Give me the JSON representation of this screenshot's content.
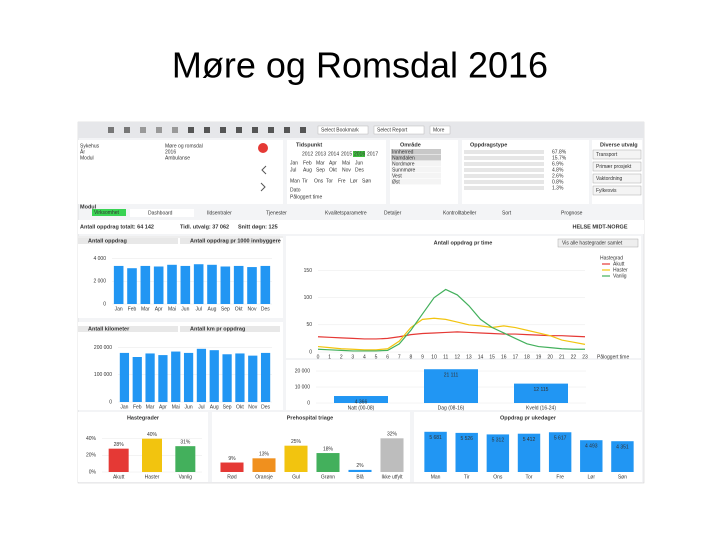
{
  "title": "Møre og Romsdal 2016",
  "toolbar": [
    "Select Bookmark",
    "Select Report",
    "More"
  ],
  "selections": {
    "fields": [
      "Sykehus",
      "År",
      "Modul"
    ],
    "values": [
      "Møre og romsdal",
      "2016",
      "Ambulanse"
    ]
  },
  "tidspunkt": {
    "title": "Tidspunkt",
    "years": [
      "2012",
      "2013",
      "2014",
      "2015",
      "2016",
      "2017"
    ],
    "selected": "2016",
    "months": [
      "Jan",
      "Feb",
      "Mar",
      "Apr",
      "Mai",
      "Jun",
      "Jul",
      "Aug",
      "Sep",
      "Okt",
      "Nov",
      "Des"
    ],
    "weekdays": [
      "Man",
      "Tir",
      "Ons",
      "Tor",
      "Fre",
      "Lør",
      "Søn"
    ],
    "date_label": "Dato",
    "hour_label": "Påloggert time"
  },
  "omrade": {
    "title": "Område",
    "items": [
      "Innherred",
      "Namdalen",
      "Nordmøre",
      "Sunnmøre",
      "Vest",
      "Øst"
    ]
  },
  "oppdragstype": {
    "title": "Oppdragstype",
    "shares": [
      "67.8%",
      "15.7%",
      "6.9%",
      "4.8%",
      "2.6%",
      "0.8%",
      "1.3%"
    ]
  },
  "diverse": {
    "title": "Diverse utvalg",
    "buttons": [
      "Transport",
      "Primær prosjekt",
      "Vaktordning",
      "Fylkesvis"
    ]
  },
  "modul": {
    "label": "Modul",
    "value": "Virksomhet"
  },
  "tabs": [
    "Dashboard",
    "Ildsentraler",
    "Tjenester",
    "Kvalitetsparametre",
    "Detaljer",
    "Kontrolltabeller",
    "Sort",
    "Prognose"
  ],
  "kpis": [
    "Antall oppdrag totalt: 64 142",
    "Tidl. utvalg: 37 062",
    "Snitt døgn: 125"
  ],
  "logo": "HELSE MIDT-NORGE",
  "panels_empty": [
    "Antall oppdrag pr 1000 innbyggere",
    "Antall km pr oppdrag"
  ],
  "chart_data": [
    {
      "type": "bar",
      "title": "Antall oppdrag",
      "color": "#2196f3",
      "categories": [
        "Jan",
        "Feb",
        "Mar",
        "Apr",
        "Mai",
        "Jun",
        "Jul",
        "Aug",
        "Sep",
        "Okt",
        "Nov",
        "Des"
      ],
      "values": [
        3350,
        3150,
        3350,
        3300,
        3450,
        3350,
        3500,
        3450,
        3300,
        3350,
        3250,
        3350
      ],
      "ylim": [
        0,
        4400
      ],
      "yticks": [
        0,
        {
          "value": 2000,
          "label": "2 000"
        },
        {
          "value": 4000,
          "label": "4 000"
        }
      ]
    },
    {
      "type": "bar",
      "title": "Antall kilometer",
      "color": "#2196f3",
      "categories": [
        "Jan",
        "Feb",
        "Mar",
        "Apr",
        "Mai",
        "Jun",
        "Jul",
        "Aug",
        "Sep",
        "Okt",
        "Nov",
        "Des"
      ],
      "values": [
        180000,
        165000,
        178000,
        172000,
        185000,
        180000,
        195000,
        190000,
        175000,
        178000,
        170000,
        180000
      ],
      "ylim": [
        0,
        220000
      ],
      "yticks": [
        0,
        {
          "value": 100000,
          "label": "100 000"
        },
        {
          "value": 200000,
          "label": "200 000"
        }
      ]
    },
    {
      "type": "line",
      "title": "Antall oppdrag pr time",
      "button": "Vis alle hastegrader samlet",
      "legend_title": "Hastegrad",
      "xlabel": "Påloggert time",
      "x": [
        0,
        1,
        2,
        3,
        4,
        5,
        6,
        7,
        8,
        9,
        10,
        11,
        12,
        13,
        14,
        15,
        16,
        17,
        18,
        19,
        20,
        21,
        22,
        23
      ],
      "xlim": [
        0,
        23
      ],
      "xticks": [
        0,
        1,
        2,
        3,
        4,
        5,
        6,
        7,
        8,
        9,
        10,
        11,
        12,
        13,
        14,
        15,
        16,
        17,
        18,
        19,
        20,
        21,
        22,
        23
      ],
      "ylim": [
        0,
        160
      ],
      "yticks": [
        0,
        50,
        100,
        150
      ],
      "series": [
        {
          "name": "Akutt",
          "color": "#e53935",
          "values": [
            28,
            27,
            26,
            25,
            24,
            24,
            25,
            28,
            32,
            34,
            35,
            36,
            37,
            36,
            35,
            34,
            33,
            33,
            32,
            31,
            30,
            30,
            29,
            28
          ]
        },
        {
          "name": "Haster",
          "color": "#f2c40f",
          "values": [
            10,
            8,
            6,
            5,
            4,
            4,
            6,
            20,
            45,
            60,
            62,
            60,
            55,
            50,
            48,
            45,
            48,
            45,
            40,
            35,
            30,
            22,
            18,
            14
          ]
        },
        {
          "name": "Vanlig",
          "color": "#43b05c",
          "values": [
            5,
            4,
            3,
            2,
            2,
            2,
            3,
            15,
            40,
            70,
            100,
            115,
            105,
            85,
            60,
            45,
            35,
            25,
            15,
            10,
            8,
            6,
            5,
            5
          ]
        }
      ]
    },
    {
      "type": "bar",
      "color": "#2196f3",
      "categories": [
        "Natt (00-08)",
        "Dag (08-16)",
        "Kveld (16-24)"
      ],
      "values": [
        4366,
        21111,
        12115
      ],
      "value_labels": [
        "4 366",
        "21 111",
        "12 115"
      ],
      "ylim": [
        0,
        25000
      ],
      "yticks": [
        0,
        {
          "value": 10000,
          "label": "10 000"
        },
        {
          "value": 20000,
          "label": "20 000"
        }
      ]
    },
    {
      "type": "bar",
      "title": "Hastegrader",
      "colors": [
        "#e53935",
        "#f2c40f",
        "#43b05c"
      ],
      "categories": [
        "Akutt",
        "Haster",
        "Vanlig"
      ],
      "values": [
        28,
        40,
        31
      ],
      "value_labels": [
        "28%",
        "40%",
        "31%"
      ],
      "ylim": [
        0,
        48
      ],
      "yticks": [
        {
          "value": 0,
          "label": "0%"
        },
        {
          "value": 20,
          "label": "20%"
        },
        {
          "value": 40,
          "label": "40%"
        }
      ]
    },
    {
      "type": "bar",
      "title": "Prehospital triage",
      "colors": [
        "#e53935",
        "#f0901e",
        "#f2c40f",
        "#43b05c",
        "#2196f3",
        "#bdbdbd"
      ],
      "categories": [
        "Rød",
        "Oransje",
        "Gul",
        "Grønn",
        "Blå",
        "Ikke utfylt"
      ],
      "values": [
        9,
        13,
        25,
        18,
        2,
        32
      ],
      "value_labels": [
        "9%",
        "13%",
        "25%",
        "18%",
        "2%",
        "32%"
      ],
      "ylim": [
        0,
        38
      ]
    },
    {
      "type": "bar",
      "title": "Oppdrag pr ukedager",
      "color": "#2196f3",
      "categories": [
        "Man",
        "Tir",
        "Ons",
        "Tor",
        "Fre",
        "Lør",
        "Søn"
      ],
      "values": [
        5681,
        5526,
        5312,
        5412,
        5617,
        4493,
        4351
      ],
      "value_labels": [
        "5 681",
        "5 526",
        "5 312",
        "5 412",
        "5 617",
        "4 493",
        "4 351"
      ],
      "ylim": [
        0,
        6500
      ]
    }
  ]
}
